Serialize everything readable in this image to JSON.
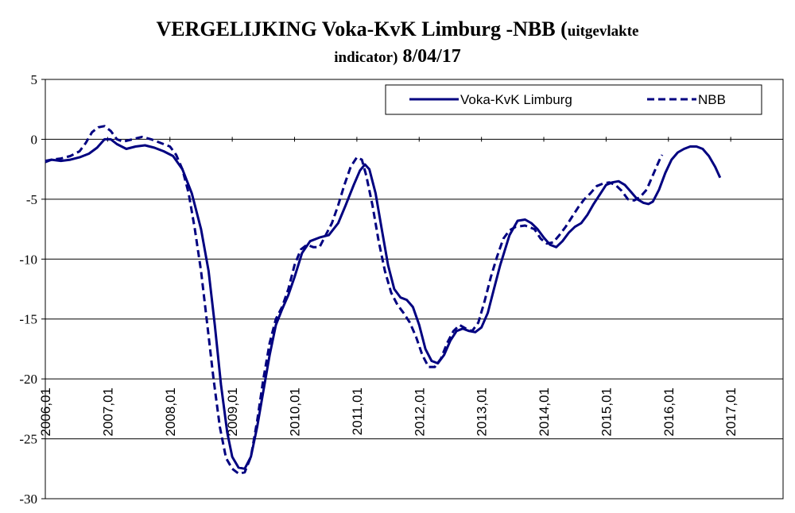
{
  "header": {
    "title_main": "VERGELIJKING Voka-KvK Limburg -NBB",
    "title_paren_open": "(",
    "title_small": "uitgevlakte",
    "title_line2_small": "indicator)",
    "title_date": "8/04/17"
  },
  "chart_data": {
    "type": "line",
    "title": "VERGELIJKING Voka-KvK Limburg -NBB (uitgevlakte indicator) 8/04/17",
    "xlabel": "",
    "ylabel": "",
    "ylim": [
      -30,
      5
    ],
    "yticks": [
      5,
      0,
      -5,
      -10,
      -15,
      -20,
      -25,
      -30
    ],
    "xlim": [
      2006.0,
      2017.83
    ],
    "xticks": [
      "2006,01",
      "2007,01",
      "2008,01",
      "2009,01",
      "2010,01",
      "2011,01",
      "2012,01",
      "2013,01",
      "2014,01",
      "2015,01",
      "2016,01",
      "2017,01"
    ],
    "grid": "horizontal",
    "legend": "top-right",
    "series": [
      {
        "name": "Voka-KvK Limburg",
        "style": "solid",
        "color": "#000080",
        "points": [
          [
            2006.0,
            -1.8
          ],
          [
            2006.1,
            -1.7
          ],
          [
            2006.25,
            -1.8
          ],
          [
            2006.4,
            -1.7
          ],
          [
            2006.55,
            -1.5
          ],
          [
            2006.7,
            -1.2
          ],
          [
            2006.83,
            -0.7
          ],
          [
            2006.95,
            0.0
          ],
          [
            2007.05,
            0.0
          ],
          [
            2007.15,
            -0.4
          ],
          [
            2007.3,
            -0.8
          ],
          [
            2007.45,
            -0.6
          ],
          [
            2007.6,
            -0.5
          ],
          [
            2007.75,
            -0.7
          ],
          [
            2007.9,
            -1.0
          ],
          [
            2008.05,
            -1.4
          ],
          [
            2008.2,
            -2.5
          ],
          [
            2008.35,
            -4.5
          ],
          [
            2008.5,
            -7.5
          ],
          [
            2008.62,
            -11.0
          ],
          [
            2008.72,
            -15.5
          ],
          [
            2008.82,
            -20.5
          ],
          [
            2008.92,
            -24.5
          ],
          [
            2009.0,
            -26.5
          ],
          [
            2009.1,
            -27.4
          ],
          [
            2009.2,
            -27.5
          ],
          [
            2009.3,
            -26.5
          ],
          [
            2009.4,
            -24.0
          ],
          [
            2009.5,
            -21.0
          ],
          [
            2009.6,
            -18.0
          ],
          [
            2009.7,
            -15.5
          ],
          [
            2009.8,
            -14.2
          ],
          [
            2009.9,
            -13.0
          ],
          [
            2010.0,
            -11.5
          ],
          [
            2010.12,
            -9.5
          ],
          [
            2010.25,
            -8.5
          ],
          [
            2010.4,
            -8.2
          ],
          [
            2010.55,
            -8.0
          ],
          [
            2010.7,
            -7.0
          ],
          [
            2010.82,
            -5.5
          ],
          [
            2010.95,
            -3.8
          ],
          [
            2011.05,
            -2.6
          ],
          [
            2011.13,
            -2.1
          ],
          [
            2011.2,
            -2.5
          ],
          [
            2011.3,
            -4.5
          ],
          [
            2011.4,
            -7.5
          ],
          [
            2011.5,
            -10.5
          ],
          [
            2011.6,
            -12.5
          ],
          [
            2011.7,
            -13.2
          ],
          [
            2011.8,
            -13.4
          ],
          [
            2011.9,
            -14.0
          ],
          [
            2012.0,
            -15.5
          ],
          [
            2012.1,
            -17.5
          ],
          [
            2012.2,
            -18.5
          ],
          [
            2012.3,
            -18.7
          ],
          [
            2012.4,
            -18.0
          ],
          [
            2012.5,
            -16.8
          ],
          [
            2012.6,
            -16.0
          ],
          [
            2012.7,
            -15.8
          ],
          [
            2012.8,
            -16.0
          ],
          [
            2012.9,
            -16.1
          ],
          [
            2013.0,
            -15.7
          ],
          [
            2013.1,
            -14.5
          ],
          [
            2013.2,
            -12.5
          ],
          [
            2013.3,
            -10.5
          ],
          [
            2013.45,
            -8.0
          ],
          [
            2013.58,
            -6.8
          ],
          [
            2013.7,
            -6.7
          ],
          [
            2013.8,
            -7.0
          ],
          [
            2013.9,
            -7.5
          ],
          [
            2014.0,
            -8.2
          ],
          [
            2014.1,
            -8.8
          ],
          [
            2014.2,
            -9.0
          ],
          [
            2014.3,
            -8.5
          ],
          [
            2014.4,
            -7.8
          ],
          [
            2014.5,
            -7.3
          ],
          [
            2014.6,
            -7.0
          ],
          [
            2014.7,
            -6.3
          ],
          [
            2014.8,
            -5.4
          ],
          [
            2014.9,
            -4.6
          ],
          [
            2015.0,
            -3.8
          ],
          [
            2015.1,
            -3.6
          ],
          [
            2015.2,
            -3.5
          ],
          [
            2015.3,
            -3.8
          ],
          [
            2015.4,
            -4.4
          ],
          [
            2015.5,
            -5.0
          ],
          [
            2015.6,
            -5.3
          ],
          [
            2015.68,
            -5.4
          ],
          [
            2015.75,
            -5.2
          ],
          [
            2015.85,
            -4.2
          ],
          [
            2015.95,
            -2.8
          ],
          [
            2016.05,
            -1.7
          ],
          [
            2016.15,
            -1.1
          ],
          [
            2016.25,
            -0.8
          ],
          [
            2016.35,
            -0.6
          ],
          [
            2016.45,
            -0.6
          ],
          [
            2016.55,
            -0.8
          ],
          [
            2016.65,
            -1.4
          ],
          [
            2016.75,
            -2.3
          ],
          [
            2016.83,
            -3.2
          ]
        ]
      },
      {
        "name": "NBB",
        "style": "dashed",
        "color": "#000080",
        "points": [
          [
            2006.0,
            -1.9
          ],
          [
            2006.1,
            -1.7
          ],
          [
            2006.25,
            -1.6
          ],
          [
            2006.4,
            -1.4
          ],
          [
            2006.55,
            -1.0
          ],
          [
            2006.65,
            -0.3
          ],
          [
            2006.75,
            0.6
          ],
          [
            2006.85,
            1.0
          ],
          [
            2006.95,
            1.1
          ],
          [
            2007.05,
            0.7
          ],
          [
            2007.15,
            0.0
          ],
          [
            2007.25,
            -0.2
          ],
          [
            2007.4,
            0.0
          ],
          [
            2007.55,
            0.2
          ],
          [
            2007.7,
            0.0
          ],
          [
            2007.85,
            -0.3
          ],
          [
            2008.0,
            -0.6
          ],
          [
            2008.1,
            -1.3
          ],
          [
            2008.2,
            -2.5
          ],
          [
            2008.3,
            -4.5
          ],
          [
            2008.4,
            -7.5
          ],
          [
            2008.5,
            -11.0
          ],
          [
            2008.6,
            -15.5
          ],
          [
            2008.7,
            -20.0
          ],
          [
            2008.8,
            -24.0
          ],
          [
            2008.9,
            -26.6
          ],
          [
            2009.0,
            -27.5
          ],
          [
            2009.1,
            -27.9
          ],
          [
            2009.2,
            -27.8
          ],
          [
            2009.3,
            -26.5
          ],
          [
            2009.4,
            -23.5
          ],
          [
            2009.5,
            -20.0
          ],
          [
            2009.6,
            -17.0
          ],
          [
            2009.7,
            -15.0
          ],
          [
            2009.8,
            -14.0
          ],
          [
            2009.9,
            -12.5
          ],
          [
            2010.0,
            -10.5
          ],
          [
            2010.1,
            -9.2
          ],
          [
            2010.2,
            -8.8
          ],
          [
            2010.3,
            -9.0
          ],
          [
            2010.4,
            -9.0
          ],
          [
            2010.5,
            -8.0
          ],
          [
            2010.6,
            -7.0
          ],
          [
            2010.7,
            -5.5
          ],
          [
            2010.8,
            -3.8
          ],
          [
            2010.9,
            -2.3
          ],
          [
            2011.0,
            -1.5
          ],
          [
            2011.08,
            -1.7
          ],
          [
            2011.15,
            -3.0
          ],
          [
            2011.25,
            -5.5
          ],
          [
            2011.35,
            -8.5
          ],
          [
            2011.45,
            -11.0
          ],
          [
            2011.55,
            -12.8
          ],
          [
            2011.65,
            -13.8
          ],
          [
            2011.75,
            -14.5
          ],
          [
            2011.85,
            -15.3
          ],
          [
            2011.95,
            -16.5
          ],
          [
            2012.05,
            -18.0
          ],
          [
            2012.15,
            -19.0
          ],
          [
            2012.25,
            -19.0
          ],
          [
            2012.35,
            -18.3
          ],
          [
            2012.45,
            -17.0
          ],
          [
            2012.55,
            -16.0
          ],
          [
            2012.65,
            -15.5
          ],
          [
            2012.75,
            -15.8
          ],
          [
            2012.85,
            -16.0
          ],
          [
            2012.95,
            -15.3
          ],
          [
            2013.05,
            -13.5
          ],
          [
            2013.15,
            -11.5
          ],
          [
            2013.25,
            -9.8
          ],
          [
            2013.35,
            -8.3
          ],
          [
            2013.45,
            -7.6
          ],
          [
            2013.55,
            -7.3
          ],
          [
            2013.7,
            -7.2
          ],
          [
            2013.85,
            -7.5
          ],
          [
            2013.95,
            -8.3
          ],
          [
            2014.05,
            -8.7
          ],
          [
            2014.15,
            -8.6
          ],
          [
            2014.25,
            -8.0
          ],
          [
            2014.35,
            -7.3
          ],
          [
            2014.45,
            -6.5
          ],
          [
            2014.55,
            -5.7
          ],
          [
            2014.65,
            -5.0
          ],
          [
            2014.75,
            -4.5
          ],
          [
            2014.85,
            -3.9
          ],
          [
            2014.95,
            -3.7
          ],
          [
            2015.05,
            -3.6
          ],
          [
            2015.15,
            -3.8
          ],
          [
            2015.25,
            -4.3
          ],
          [
            2015.35,
            -5.0
          ],
          [
            2015.45,
            -5.1
          ],
          [
            2015.55,
            -4.8
          ],
          [
            2015.65,
            -4.2
          ],
          [
            2015.75,
            -3.0
          ],
          [
            2015.85,
            -1.8
          ],
          [
            2015.9,
            -1.3
          ]
        ]
      }
    ]
  }
}
